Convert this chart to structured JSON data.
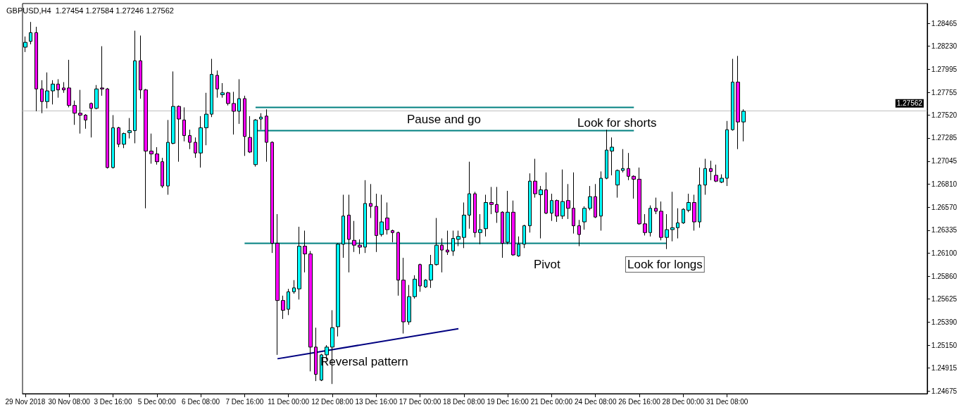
{
  "chart_data": {
    "type": "candlestick",
    "title": "GBPUSD,H4  1.27454 1.27584 1.27246 1.27562",
    "categories": [
      "29 Nov 2018",
      null,
      null,
      null,
      null,
      null,
      null,
      null,
      "30 Nov 08:00",
      null,
      null,
      null,
      null,
      null,
      null,
      null,
      "3 Dec 16:00",
      null,
      null,
      null,
      null,
      null,
      null,
      null,
      "5 Dec 00:00",
      null,
      null,
      null,
      null,
      null,
      null,
      null,
      "6 Dec 08:00",
      null,
      null,
      null,
      null,
      null,
      null,
      null,
      "7 Dec 16:00",
      null,
      null,
      null,
      null,
      null,
      null,
      null,
      "11 Dec 00:00",
      null,
      null,
      null,
      null,
      null,
      null,
      null,
      "12 Dec 08:00",
      null,
      null,
      null,
      null,
      null,
      null,
      null,
      "13 Dec 16:00",
      null,
      null,
      null,
      null,
      null,
      null,
      null,
      "17 Dec 00:00",
      null,
      null,
      null,
      null,
      null,
      null,
      null,
      "18 Dec 08:00",
      null,
      null,
      null,
      null,
      null,
      null,
      null,
      "19 Dec 16:00",
      null,
      null,
      null,
      null,
      null,
      null,
      null,
      "21 Dec 00:00",
      null,
      null,
      null,
      null,
      null,
      null,
      null,
      "24 Dec 08:00",
      null,
      null,
      null,
      null,
      null,
      null,
      null,
      "26 Dec 16:00",
      null,
      null,
      null,
      null,
      null,
      null,
      null,
      "28 Dec 00:00",
      null,
      null,
      null,
      null,
      null,
      null,
      null,
      "31 Dec 08:00",
      null,
      null,
      null,
      null,
      null,
      null,
      null,
      null,
      null,
      null,
      null,
      null,
      null,
      null,
      null,
      null,
      null,
      null,
      null,
      null,
      null,
      null,
      null,
      null,
      null,
      null,
      null,
      null,
      null,
      null,
      null,
      null,
      null,
      null,
      null,
      null
    ],
    "series": [
      {
        "ohlc": [
          [
            1.2822,
            1.2833,
            1.2817,
            1.2827
          ],
          [
            1.2828,
            1.2848,
            1.2825,
            1.2837
          ],
          [
            1.2837,
            1.2843,
            1.2756,
            1.2779
          ],
          [
            1.2779,
            1.2788,
            1.2754,
            1.2766
          ],
          [
            1.2766,
            1.2796,
            1.2759,
            1.2777
          ],
          [
            1.2777,
            1.2788,
            1.2763,
            1.2784
          ],
          [
            1.2784,
            1.2789,
            1.277,
            1.2778
          ],
          [
            1.278,
            1.2786,
            1.2775,
            1.2778
          ],
          [
            1.278,
            1.2809,
            1.276,
            1.2762
          ],
          [
            1.2762,
            1.2767,
            1.2742,
            1.2754
          ],
          [
            1.2754,
            1.2778,
            1.2733,
            1.2752
          ],
          [
            1.2752,
            1.2753,
            1.2738,
            1.2747
          ],
          [
            1.2764,
            1.2765,
            1.2729,
            1.2759
          ],
          [
            1.2759,
            1.2783,
            1.2758,
            1.2779
          ],
          [
            1.278,
            1.2823,
            1.2772,
            1.2779
          ],
          [
            1.2779,
            1.278,
            1.2697,
            1.2698
          ],
          [
            1.2698,
            1.2752,
            1.2697,
            1.2739
          ],
          [
            1.2739,
            1.274,
            1.2719,
            1.2722
          ],
          [
            1.2722,
            1.2734,
            1.2718,
            1.2733
          ],
          [
            1.2734,
            1.2749,
            1.2728,
            1.2736
          ],
          [
            1.2736,
            1.2839,
            1.2723,
            1.2808
          ],
          [
            1.2808,
            1.2834,
            1.2769,
            1.2778
          ],
          [
            1.2778,
            1.2779,
            1.2656,
            1.2715
          ],
          [
            1.2715,
            1.2733,
            1.2702,
            1.2712
          ],
          [
            1.2712,
            1.2719,
            1.2701,
            1.2704
          ],
          [
            1.2704,
            1.2708,
            1.2677,
            1.2679
          ],
          [
            1.2679,
            1.2747,
            1.267,
            1.2724
          ],
          [
            1.2723,
            1.2797,
            1.2722,
            1.2761
          ],
          [
            1.2761,
            1.2762,
            1.2704,
            1.2748
          ],
          [
            1.2747,
            1.276,
            1.2725,
            1.2731
          ],
          [
            1.2731,
            1.2737,
            1.2717,
            1.2724
          ],
          [
            1.2724,
            1.2729,
            1.2708,
            1.2713
          ],
          [
            1.2713,
            1.2751,
            1.2698,
            1.2739
          ],
          [
            1.2739,
            1.2775,
            1.2721,
            1.2753
          ],
          [
            1.2753,
            1.281,
            1.275,
            1.2794
          ],
          [
            1.2793,
            1.2798,
            1.277,
            1.2779
          ],
          [
            1.2773,
            1.2785,
            1.277,
            1.2775
          ],
          [
            1.2775,
            1.2776,
            1.2762,
            1.2764
          ],
          [
            1.2764,
            1.2776,
            1.2732,
            1.2756
          ],
          [
            1.2756,
            1.2789,
            1.2743,
            1.2769
          ],
          [
            1.2769,
            1.2772,
            1.271,
            1.273
          ],
          [
            1.2729,
            1.2751,
            1.2713,
            1.2714
          ],
          [
            1.2701,
            1.2748,
            1.2699,
            1.2747
          ],
          [
            1.2748,
            1.2754,
            1.2737,
            1.275
          ],
          [
            1.2751,
            1.2758,
            1.2704,
            1.2724
          ],
          [
            1.2724,
            1.2725,
            1.261,
            1.262
          ],
          [
            1.262,
            1.265,
            1.2505,
            1.2561
          ],
          [
            1.2561,
            1.2566,
            1.2542,
            1.2551
          ],
          [
            1.2552,
            1.2573,
            1.2546,
            1.257
          ],
          [
            1.257,
            1.2582,
            1.2568,
            1.2574
          ],
          [
            1.2573,
            1.2637,
            1.2562,
            1.2617
          ],
          [
            1.2617,
            1.2633,
            1.259,
            1.2609
          ],
          [
            1.2609,
            1.2612,
            1.2488,
            1.2513
          ],
          [
            1.2513,
            1.2533,
            1.2478,
            1.2485
          ],
          [
            1.2479,
            1.2506,
            1.2478,
            1.2505
          ],
          [
            1.2505,
            1.2515,
            1.25,
            1.2513
          ],
          [
            1.2513,
            1.2551,
            1.2475,
            1.2533
          ],
          [
            1.2534,
            1.262,
            1.2524,
            1.2619
          ],
          [
            1.2619,
            1.267,
            1.2605,
            1.2648
          ],
          [
            1.2649,
            1.267,
            1.259,
            1.2624
          ],
          [
            1.2623,
            1.2643,
            1.2611,
            1.2618
          ],
          [
            1.2618,
            1.2624,
            1.2609,
            1.2616
          ],
          [
            1.2616,
            1.2685,
            1.261,
            1.2661
          ],
          [
            1.2661,
            1.2681,
            1.2646,
            1.2658
          ],
          [
            1.2658,
            1.2671,
            1.2611,
            1.2628
          ],
          [
            1.2629,
            1.267,
            1.2627,
            1.2642
          ],
          [
            1.2646,
            1.2662,
            1.2629,
            1.2634
          ],
          [
            1.2633,
            1.2634,
            1.2621,
            1.2631
          ],
          [
            1.2631,
            1.2632,
            1.2566,
            1.2582
          ],
          [
            1.2582,
            1.2605,
            1.2527,
            1.2539
          ],
          [
            1.2539,
            1.2577,
            1.2536,
            1.2565
          ],
          [
            1.2565,
            1.2587,
            1.2563,
            1.2583
          ],
          [
            1.2598,
            1.2599,
            1.257,
            1.2576
          ],
          [
            1.2575,
            1.2583,
            1.2574,
            1.2582
          ],
          [
            1.2582,
            1.2608,
            1.2574,
            1.2598
          ],
          [
            1.2598,
            1.2646,
            1.2597,
            1.2618
          ],
          [
            1.2618,
            1.2625,
            1.259,
            1.2613
          ],
          [
            1.2613,
            1.2633,
            1.2608,
            1.2611
          ],
          [
            1.2612,
            1.2633,
            1.2607,
            1.2625
          ],
          [
            1.2624,
            1.2633,
            1.2617,
            1.2627
          ],
          [
            1.2626,
            1.2662,
            1.2615,
            1.2649
          ],
          [
            1.2649,
            1.2704,
            1.2635,
            1.2671
          ],
          [
            1.2671,
            1.2673,
            1.2626,
            1.2631
          ],
          [
            1.2631,
            1.265,
            1.2619,
            1.2634
          ],
          [
            1.2635,
            1.267,
            1.2627,
            1.2662
          ],
          [
            1.2662,
            1.2678,
            1.265,
            1.266
          ],
          [
            1.266,
            1.2678,
            1.2641,
            1.2652
          ],
          [
            1.2652,
            1.2653,
            1.2605,
            1.262
          ],
          [
            1.2621,
            1.2674,
            1.2619,
            1.2652
          ],
          [
            1.2652,
            1.2664,
            1.2607,
            1.2608
          ],
          [
            1.2607,
            1.2627,
            1.2606,
            1.2619
          ],
          [
            1.2619,
            1.2639,
            1.2615,
            1.2638
          ],
          [
            1.2638,
            1.2692,
            1.2631,
            1.2684
          ],
          [
            1.2684,
            1.2707,
            1.2667,
            1.2671
          ],
          [
            1.267,
            1.2679,
            1.2625,
            1.2675
          ],
          [
            1.2675,
            1.2693,
            1.265,
            1.2651
          ],
          [
            1.2651,
            1.2671,
            1.2643,
            1.2664
          ],
          [
            1.2664,
            1.2665,
            1.2642,
            1.2648
          ],
          [
            1.2648,
            1.2696,
            1.2645,
            1.2663
          ],
          [
            1.2664,
            1.2681,
            1.2645,
            1.2656
          ],
          [
            1.2656,
            1.2693,
            1.263,
            1.2638
          ],
          [
            1.2638,
            1.2644,
            1.2617,
            1.2629
          ],
          [
            1.2642,
            1.2658,
            1.2634,
            1.2656
          ],
          [
            1.2656,
            1.2679,
            1.2654,
            1.2668
          ],
          [
            1.2668,
            1.2681,
            1.2646,
            1.2647
          ],
          [
            1.2648,
            1.2694,
            1.2633,
            1.2687
          ],
          [
            1.2687,
            1.2737,
            1.2686,
            1.2716
          ],
          [
            1.2715,
            1.2729,
            1.269,
            1.2719
          ],
          [
            1.268,
            1.2696,
            1.2667,
            1.2695
          ],
          [
            1.2695,
            1.2717,
            1.2693,
            1.2697
          ],
          [
            1.2697,
            1.2713,
            1.2685,
            1.2689
          ],
          [
            1.2689,
            1.269,
            1.2666,
            1.2686
          ],
          [
            1.2686,
            1.2698,
            1.2639,
            1.264
          ],
          [
            1.264,
            1.265,
            1.2628,
            1.2631
          ],
          [
            1.2631,
            1.2659,
            1.2627,
            1.2656
          ],
          [
            1.2656,
            1.2667,
            1.265,
            1.2653
          ],
          [
            1.2653,
            1.2663,
            1.2623,
            1.2626
          ],
          [
            1.2626,
            1.265,
            1.2614,
            1.2634
          ],
          [
            1.2634,
            1.2673,
            1.2622,
            1.2636
          ],
          [
            1.2636,
            1.2656,
            1.2625,
            1.2641
          ],
          [
            1.2641,
            1.2656,
            1.264,
            1.2655
          ],
          [
            1.2654,
            1.2671,
            1.2652,
            1.2662
          ],
          [
            1.2662,
            1.267,
            1.2633,
            1.2642
          ],
          [
            1.2642,
            1.2698,
            1.2636,
            1.268
          ],
          [
            1.268,
            1.2707,
            1.267,
            1.2697
          ],
          [
            1.2697,
            1.2705,
            1.2685,
            1.2694
          ],
          [
            1.269,
            1.2701,
            1.2683,
            1.2684
          ],
          [
            1.2683,
            1.2691,
            1.2682,
            1.2687
          ],
          [
            1.2687,
            1.2746,
            1.2679,
            1.2737
          ],
          [
            1.2737,
            1.281,
            1.2736,
            1.2786
          ],
          [
            1.2786,
            1.2813,
            1.2717,
            1.2745
          ],
          [
            1.2745,
            1.2758,
            1.2725,
            1.2756
          ],
          null,
          null,
          null,
          null,
          null,
          null,
          null,
          null,
          null,
          null,
          null,
          null,
          null,
          null,
          null,
          null,
          null,
          null,
          null,
          null,
          null,
          null,
          null,
          null,
          null,
          null,
          null,
          null,
          null,
          null,
          null,
          null,
          null
        ],
        "colors": [
          "#00ffff",
          "#00ffff",
          "#ff00ff",
          "#ff00ff",
          "#00ffff",
          "#00ffff",
          "#ff00ff",
          "#ff00ff",
          "#ff00ff",
          "#ff00ff",
          "#ff00ff",
          "#ff00ff",
          "#ff00ff",
          "#00ffff",
          "#ff00ff",
          "#ff00ff",
          "#00ffff",
          "#ff00ff",
          "#00ffff",
          "#00ffff",
          "#00ffff",
          "#ff00ff",
          "#ff00ff",
          "#ff00ff",
          "#ff00ff",
          "#ff00ff",
          "#00ffff",
          "#00ffff",
          "#ff00ff",
          "#ff00ff",
          "#ff00ff",
          "#ff00ff",
          "#00ffff",
          "#00ffff",
          "#00ffff",
          "#ff00ff",
          "#00ffff",
          "#ff00ff",
          "#ff00ff",
          "#00ffff",
          "#ff00ff",
          "#ff00ff",
          "#00ffff",
          "#00ffff",
          "#ff00ff",
          "#ff00ff",
          "#ff00ff",
          "#ff00ff",
          "#00ffff",
          "#00ffff",
          "#00ffff",
          "#ff00ff",
          "#ff00ff",
          "#ff00ff",
          "#00ffff",
          "#00ffff",
          "#00ffff",
          "#00ffff",
          "#00ffff",
          "#ff00ff",
          "#ff00ff",
          "#ff00ff",
          "#00ffff",
          "#ff00ff",
          "#ff00ff",
          "#00ffff",
          "#ff00ff",
          "#ff00ff",
          "#ff00ff",
          "#ff00ff",
          "#00ffff",
          "#00ffff",
          "#ff00ff",
          "#00ffff",
          "#00ffff",
          "#00ffff",
          "#ff00ff",
          "#ff00ff",
          "#00ffff",
          "#00ffff",
          "#00ffff",
          "#00ffff",
          "#ff00ff",
          "#00ffff",
          "#00ffff",
          "#ff00ff",
          "#ff00ff",
          "#ff00ff",
          "#00ffff",
          "#ff00ff",
          "#00ffff",
          "#00ffff",
          "#00ffff",
          "#ff00ff",
          "#00ffff",
          "#ff00ff",
          "#00ffff",
          "#ff00ff",
          "#00ffff",
          "#ff00ff",
          "#ff00ff",
          "#ff00ff",
          "#00ffff",
          "#00ffff",
          "#ff00ff",
          "#00ffff",
          "#00ffff",
          "#00ffff",
          "#00ffff",
          "#00ffff",
          "#ff00ff",
          "#ff00ff",
          "#ff00ff",
          "#ff00ff",
          "#00ffff",
          "#ff00ff",
          "#ff00ff",
          "#00ffff",
          "#00ffff",
          "#00ffff",
          "#00ffff",
          "#00ffff",
          "#ff00ff",
          "#00ffff",
          "#00ffff",
          "#ff00ff",
          "#ff00ff",
          "#00ffff",
          "#00ffff",
          "#00ffff",
          "#ff00ff",
          "#00ffff",
          null,
          null,
          null,
          null,
          null,
          null,
          null,
          null,
          null,
          null,
          null,
          null,
          null,
          null,
          null,
          null,
          null,
          null,
          null,
          null,
          null,
          null,
          null,
          null,
          null,
          null,
          null,
          null,
          null,
          null,
          null,
          null,
          null
        ]
      },
      {
        "type": "line",
        "color": "#008080",
        "values": [
          null,
          null,
          null,
          null,
          null,
          null,
          null,
          null,
          null,
          null,
          null,
          null,
          null,
          null,
          null,
          null,
          null,
          null,
          null,
          null,
          null,
          null,
          null,
          null,
          null,
          null,
          null,
          null,
          null,
          null,
          null,
          null,
          null,
          null,
          null,
          null,
          null,
          null,
          null,
          null,
          null,
          null,
          1.276,
          null,
          null,
          null,
          null,
          null,
          null,
          null,
          null,
          null,
          null,
          null,
          null,
          null,
          null,
          null,
          null,
          null,
          null,
          null,
          null,
          null,
          null,
          null,
          null,
          null,
          null,
          null,
          null,
          null,
          null,
          null,
          null,
          null,
          null,
          null,
          null,
          null,
          null,
          null,
          null,
          null,
          null,
          null,
          null,
          null,
          null,
          null,
          null,
          null,
          null,
          null,
          null,
          null,
          null,
          null,
          null,
          null,
          null,
          null,
          null,
          null,
          null,
          null,
          null,
          null,
          null,
          null,
          null,
          1.276,
          null,
          null,
          null,
          null,
          null,
          null,
          null,
          null,
          null,
          null,
          null,
          null,
          null,
          null,
          null,
          null,
          null,
          null,
          null,
          null,
          null,
          null,
          null,
          null,
          null,
          null,
          null,
          null,
          null,
          null,
          null,
          null,
          null,
          null,
          null,
          null,
          null,
          null,
          null,
          null,
          null,
          null,
          null,
          null,
          null,
          null,
          null,
          null,
          null,
          null,
          null,
          null,
          null
        ]
      },
      {
        "type": "line",
        "color": "#008080",
        "values": [
          null,
          null,
          null,
          null,
          null,
          null,
          null,
          null,
          null,
          null,
          null,
          null,
          null,
          null,
          null,
          null,
          null,
          null,
          null,
          null,
          null,
          null,
          null,
          null,
          null,
          null,
          null,
          null,
          null,
          null,
          null,
          null,
          null,
          null,
          null,
          null,
          null,
          null,
          null,
          null,
          null,
          null,
          1.2736,
          null,
          null,
          null,
          null,
          null,
          null,
          null,
          null,
          null,
          null,
          null,
          null,
          null,
          null,
          null,
          null,
          null,
          null,
          null,
          null,
          null,
          null,
          null,
          null,
          null,
          null,
          null,
          null,
          null,
          null,
          null,
          null,
          null,
          null,
          null,
          null,
          null,
          null,
          null,
          null,
          null,
          null,
          null,
          null,
          null,
          null,
          null,
          null,
          null,
          null,
          null,
          null,
          null,
          null,
          null,
          null,
          null,
          null,
          null,
          null,
          null,
          null,
          null,
          null,
          null,
          null,
          null,
          null,
          1.2736,
          null,
          null,
          null,
          null,
          null,
          null,
          null,
          null,
          null,
          null,
          null,
          null,
          null,
          null,
          null,
          null,
          null,
          null,
          null,
          null,
          null,
          null,
          null,
          null,
          null,
          null,
          null,
          null,
          null,
          null,
          null,
          null,
          null,
          null,
          null,
          null,
          null,
          null,
          null,
          null,
          null,
          null,
          null,
          null,
          null,
          null,
          null,
          null,
          null,
          null,
          null,
          null,
          null
        ]
      },
      {
        "type": "line",
        "color": "#008080",
        "values": [
          null,
          null,
          null,
          null,
          null,
          null,
          null,
          null,
          null,
          null,
          null,
          null,
          null,
          null,
          null,
          null,
          null,
          null,
          null,
          null,
          null,
          null,
          null,
          null,
          null,
          null,
          null,
          null,
          null,
          null,
          null,
          null,
          null,
          null,
          null,
          null,
          null,
          null,
          null,
          null,
          1.262,
          null,
          null,
          null,
          null,
          null,
          null,
          null,
          null,
          null,
          null,
          null,
          null,
          null,
          null,
          null,
          null,
          null,
          null,
          null,
          null,
          null,
          null,
          null,
          null,
          null,
          null,
          null,
          null,
          null,
          null,
          null,
          null,
          null,
          null,
          null,
          null,
          null,
          null,
          null,
          null,
          null,
          null,
          null,
          null,
          null,
          null,
          null,
          null,
          null,
          null,
          null,
          null,
          null,
          null,
          null,
          null,
          null,
          null,
          null,
          null,
          null,
          null,
          null,
          null,
          null,
          null,
          null,
          null,
          null,
          null,
          null,
          null,
          null,
          null,
          null,
          null,
          1.262,
          null,
          null,
          null,
          null,
          null,
          null,
          null,
          null,
          null,
          null,
          null,
          null,
          null,
          null,
          null,
          null,
          null,
          null,
          null,
          null,
          null,
          null,
          null,
          null,
          null,
          null,
          null,
          null,
          null,
          null,
          null,
          null,
          null,
          null,
          null,
          null,
          null,
          null,
          null,
          null,
          null,
          null,
          null,
          null,
          null,
          null,
          null
        ]
      },
      {
        "type": "line",
        "color": "#000080",
        "values": [
          null,
          null,
          null,
          null,
          null,
          null,
          null,
          null,
          null,
          null,
          null,
          null,
          null,
          null,
          null,
          null,
          null,
          null,
          null,
          null,
          null,
          null,
          null,
          null,
          null,
          null,
          null,
          null,
          null,
          null,
          null,
          null,
          null,
          null,
          null,
          null,
          null,
          null,
          null,
          null,
          null,
          null,
          null,
          null,
          null,
          null,
          1.2501,
          null,
          null,
          null,
          null,
          null,
          null,
          null,
          null,
          null,
          null,
          null,
          null,
          null,
          null,
          null,
          null,
          null,
          null,
          null,
          null,
          null,
          null,
          null,
          null,
          null,
          null,
          null,
          null,
          null,
          null,
          null,
          null,
          1.2532,
          null,
          null,
          null,
          null,
          null,
          null,
          null,
          null,
          null,
          null,
          null,
          null,
          null,
          null,
          null,
          null,
          null,
          null,
          null,
          null,
          null,
          null,
          null,
          null,
          null,
          null,
          null,
          null,
          null,
          null,
          null,
          null,
          null,
          null,
          null,
          null,
          null,
          null,
          null,
          null,
          null,
          null,
          null,
          null,
          null,
          null,
          null,
          null,
          null,
          null,
          null,
          null,
          null,
          null,
          null,
          null,
          null,
          null,
          null,
          null,
          null,
          null,
          null,
          null,
          null,
          null,
          null,
          null,
          null,
          null,
          null,
          null,
          null,
          null,
          null,
          null,
          null,
          null,
          null,
          null,
          null,
          null,
          null,
          null,
          null
        ]
      }
    ],
    "ylim": [
      1.2465,
      1.2867
    ],
    "yticks": [
      1.24675,
      1.24915,
      {
        "value": 1.2515,
        "label": "1.25150"
      },
      {
        "value": 1.2539,
        "label": "1.25390"
      },
      1.25625,
      {
        "value": 1.2586,
        "label": "1.25860"
      },
      {
        "value": 1.261,
        "label": "1.26100"
      },
      1.26335,
      {
        "value": 1.2657,
        "label": "1.26570"
      },
      {
        "value": 1.2681,
        "label": "1.26810"
      },
      1.27045,
      1.27285,
      {
        "value": 1.2752,
        "label": "1.27520"
      },
      1.27755,
      1.27995,
      {
        "value": 1.2823,
        "label": "1.28230"
      },
      1.28465
    ],
    "ref_lines": [
      {
        "axis": "y",
        "value": 1.27562,
        "label": "1.27562",
        "color": "#c0c0c0"
      }
    ],
    "annotations": [
      "Pause and go",
      "Look for shorts",
      "Pivot",
      "Look for longs",
      "Reversal pattern"
    ],
    "grid": false
  }
}
